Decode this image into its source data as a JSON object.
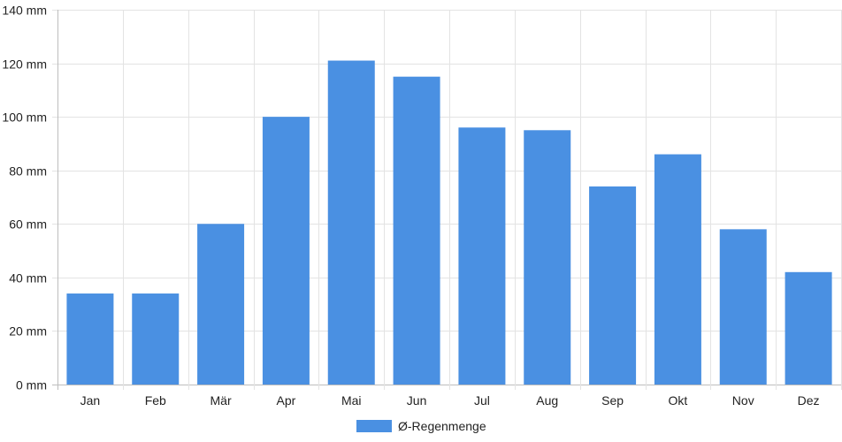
{
  "chart_data": {
    "type": "bar",
    "categories": [
      "Jan",
      "Feb",
      "Mär",
      "Apr",
      "Mai",
      "Jun",
      "Jul",
      "Aug",
      "Sep",
      "Okt",
      "Nov",
      "Dez"
    ],
    "series": [
      {
        "name": "Ø-Regenmenge",
        "values": [
          34,
          34,
          60,
          100,
          121,
          115,
          96,
          95,
          74,
          86,
          58,
          42
        ],
        "color": "#4a90e2"
      }
    ],
    "ylim": [
      0,
      140
    ],
    "yticks": [
      0,
      20,
      40,
      60,
      80,
      100,
      120,
      140
    ],
    "y_unit": "mm",
    "title": "",
    "xlabel": "",
    "ylabel": "",
    "grid": true,
    "legend_position": "bottom-center"
  }
}
